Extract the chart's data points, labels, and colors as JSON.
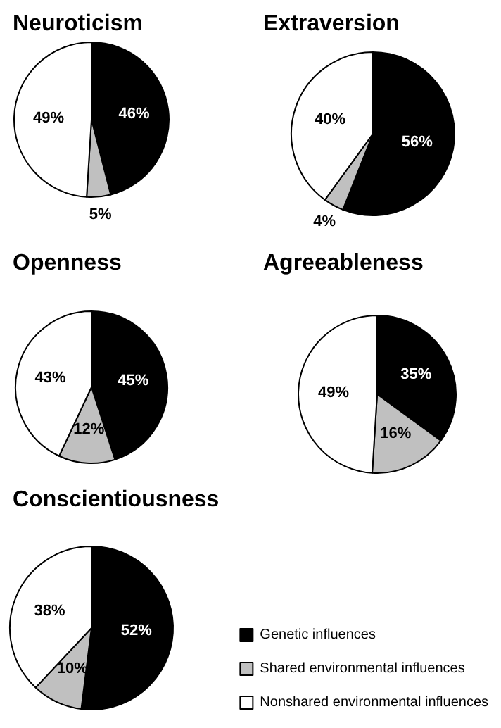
{
  "chart_data": [
    {
      "type": "pie",
      "title": "Neuroticism",
      "values": [
        46,
        5,
        49
      ],
      "value_labels": [
        "46%",
        "5%",
        "49%"
      ],
      "colors": [
        "#000000",
        "#c0c0c0",
        "#ffffff"
      ],
      "legend": false
    },
    {
      "type": "pie",
      "title": "Extraversion",
      "values": [
        56,
        4,
        40
      ],
      "value_labels": [
        "56%",
        "4%",
        "40%"
      ],
      "colors": [
        "#000000",
        "#c0c0c0",
        "#ffffff"
      ],
      "legend": false
    },
    {
      "type": "pie",
      "title": "Openness",
      "values": [
        45,
        12,
        43
      ],
      "value_labels": [
        "45%",
        "12%",
        "43%"
      ],
      "colors": [
        "#000000",
        "#c0c0c0",
        "#ffffff"
      ],
      "legend": false
    },
    {
      "type": "pie",
      "title": "Agreeableness",
      "values": [
        35,
        16,
        49
      ],
      "value_labels": [
        "35%",
        "16%",
        "49%"
      ],
      "colors": [
        "#000000",
        "#c0c0c0",
        "#ffffff"
      ],
      "legend": false
    },
    {
      "type": "pie",
      "title": "Conscientiousness",
      "categories": [
        "Genetic influences",
        "Shared environmental influences",
        "Nonshared environmental influences"
      ],
      "values": [
        52,
        10,
        38
      ],
      "value_labels": [
        "52%",
        "10%",
        "38%"
      ],
      "colors": [
        "#000000",
        "#c0c0c0",
        "#ffffff"
      ],
      "legend": "bottom right"
    }
  ]
}
